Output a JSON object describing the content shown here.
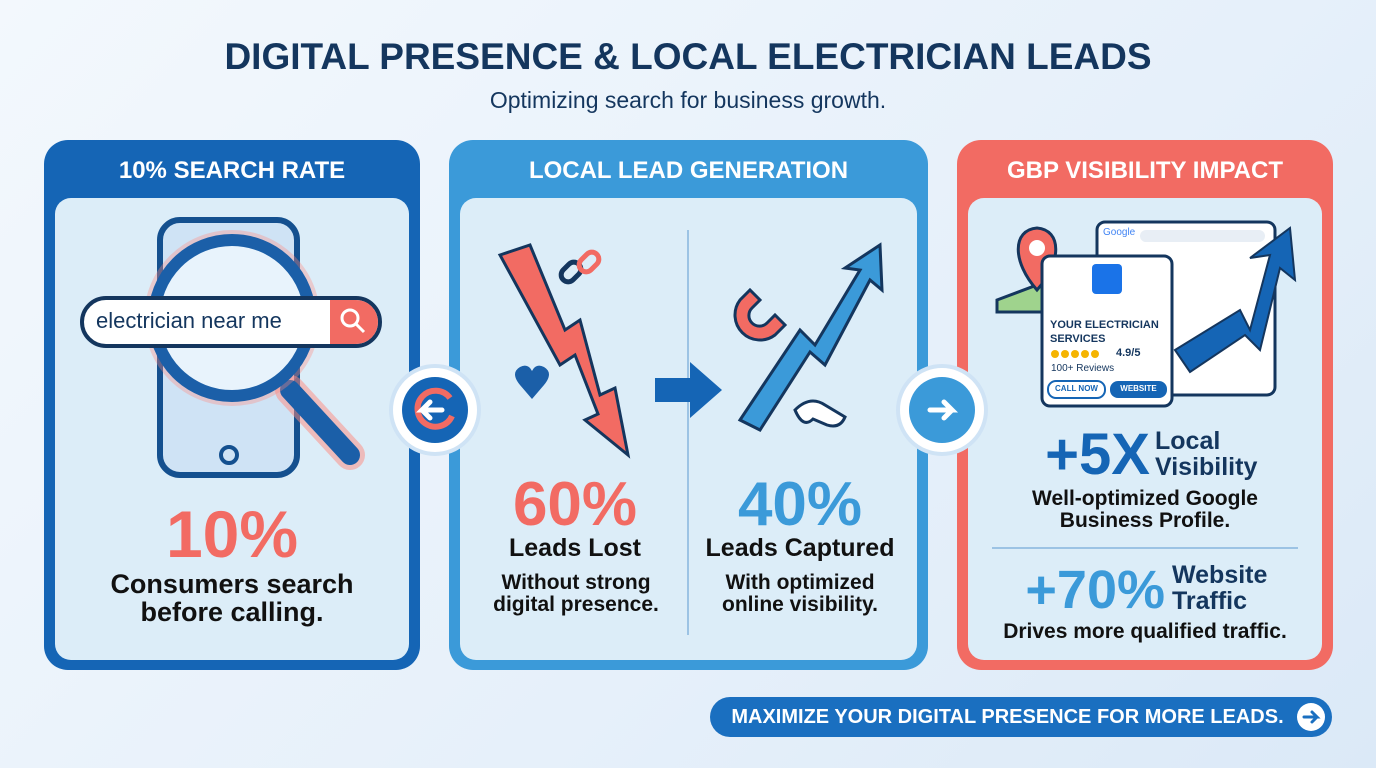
{
  "header": {
    "title": "DIGITAL PRESENCE & LOCAL ELECTRICIAN LEADS",
    "subtitle": "Optimizing search for business growth."
  },
  "panels": [
    {
      "title": "10% SEARCH RATE",
      "search_text": "electrician near me",
      "stat": "10%",
      "caption": "Consumers search before calling."
    },
    {
      "title": "LOCAL LEAD GENERATION",
      "left": {
        "stat": "60%",
        "label": "Leads Lost",
        "caption": "Without strong digital presence."
      },
      "right": {
        "stat": "40%",
        "label": "Leads Captured",
        "caption": "With optimized online visibility."
      }
    },
    {
      "title": "GBP VISIBILITY IMPACT",
      "listing": {
        "brand": "Google",
        "name": "YOUR ELECTRICIAN SERVICES",
        "rating": "4.9/5",
        "reviews": "100+ Reviews",
        "buttons": [
          "CALL NOW",
          "WEBSITE"
        ]
      },
      "stats": [
        {
          "stat": "+5X",
          "label": "Local Visibility",
          "caption": "Well-optimized Google Business Profile."
        },
        {
          "stat": "+70%",
          "label": "Website Traffic",
          "caption": "Drives more qualified traffic."
        }
      ]
    }
  ],
  "cta": "MAXIMIZE YOUR DIGITAL PRESENCE FOR MORE LEADS."
}
